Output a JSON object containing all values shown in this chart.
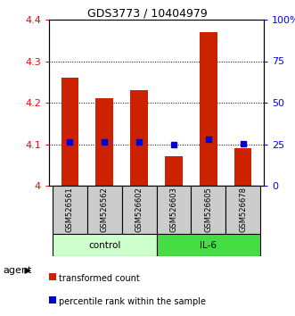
{
  "title": "GDS3773 / 10404979",
  "samples": [
    "GSM526561",
    "GSM526562",
    "GSM526602",
    "GSM526603",
    "GSM526605",
    "GSM526678"
  ],
  "red_values": [
    4.26,
    4.21,
    4.23,
    4.07,
    4.37,
    4.09
  ],
  "blue_values": [
    4.105,
    4.105,
    4.105,
    4.098,
    4.112,
    4.102
  ],
  "ylim_left": [
    4.0,
    4.4
  ],
  "ylim_right": [
    0,
    100
  ],
  "yticks_left": [
    4.0,
    4.1,
    4.2,
    4.3,
    4.4
  ],
  "ytick_labels_left": [
    "4",
    "4.1",
    "4.2",
    "4.3",
    "4.4"
  ],
  "yticks_right": [
    0,
    25,
    50,
    75,
    100
  ],
  "ytick_labels_right": [
    "0",
    "25",
    "50",
    "75",
    "100%"
  ],
  "bar_color": "#cc2200",
  "dot_color": "#0000cc",
  "control_bg": "#ccffcc",
  "il6_bg": "#44dd44",
  "sample_bg": "#cccccc",
  "legend_entries": [
    "transformed count",
    "percentile rank within the sample"
  ],
  "bar_width": 0.5,
  "bar_base": 4.0
}
